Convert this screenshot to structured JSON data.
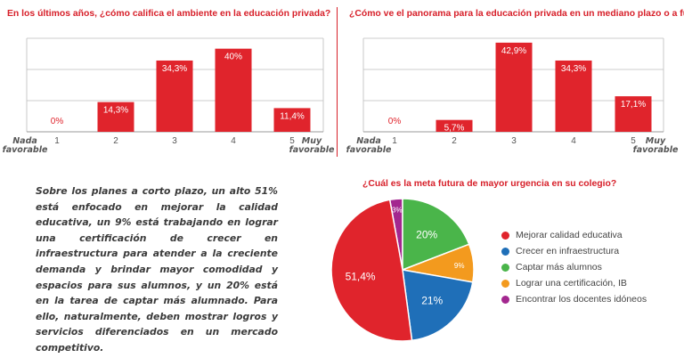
{
  "chart_data": [
    {
      "type": "bar",
      "title": "En los últimos años, ¿cómo califica el ambiente en la educación privada?",
      "categories": [
        "1",
        "2",
        "3",
        "4",
        "5"
      ],
      "values": [
        0,
        14.3,
        34.3,
        40,
        11.4
      ],
      "data_labels": [
        "0%",
        "14,3%",
        "34,3%",
        "40%",
        "11,4%"
      ],
      "x_end_labels": {
        "left": [
          "Nada",
          "favorable"
        ],
        "right": [
          "Muy",
          "favorable"
        ]
      },
      "ylim": [
        0,
        45
      ],
      "grid": true,
      "color": "#e0242c"
    },
    {
      "type": "bar",
      "title": "¿Cómo ve el panorama para la educación privada en un mediano plazo o a futuro?",
      "categories": [
        "1",
        "2",
        "3",
        "4",
        "5"
      ],
      "values": [
        0,
        5.7,
        42.9,
        34.3,
        17.1
      ],
      "data_labels": [
        "0%",
        "5,7%",
        "42,9%",
        "34,3%",
        "17,1%"
      ],
      "x_end_labels": {
        "left": [
          "Nada",
          "favorable"
        ],
        "right": [
          "Muy",
          "favorable"
        ]
      },
      "ylim": [
        0,
        45
      ],
      "grid": true,
      "color": "#e0242c"
    },
    {
      "type": "pie",
      "title": "¿Cuál es la meta futura de mayor urgencia en su colegio?",
      "slices": [
        {
          "label": "Mejorar calidad educativa",
          "value": 51.4,
          "display": "51,4%",
          "color": "#e0242c"
        },
        {
          "label": "Crecer en infraestructura",
          "value": 21,
          "display": "21%",
          "color": "#1f6fb8"
        },
        {
          "label": "Captar más alumnos",
          "value": 20,
          "display": "20%",
          "color": "#4ab54a"
        },
        {
          "label": "Lograr una certificación, IB",
          "value": 9,
          "display": "9%",
          "color": "#f39a1e"
        },
        {
          "label": "Encontrar los docentes idóneos",
          "value": 3,
          "display": "3%",
          "color": "#a3278f"
        }
      ],
      "legend_position": "right"
    }
  ],
  "paragraph": "Sobre los planes a corto plazo, un alto 51% está enfocado en mejorar la calidad educativa, un 9% está trabajando en lograr una certificación de crecer en infraestructura para atender a la creciente demanda y brindar mayor comodidad y espacios para sus alumnos, y un 20% está en la tarea de captar más alumnado. Para ello, naturalmente, deben mostrar logros y servicios diferenciados en un mercado competitivo."
}
